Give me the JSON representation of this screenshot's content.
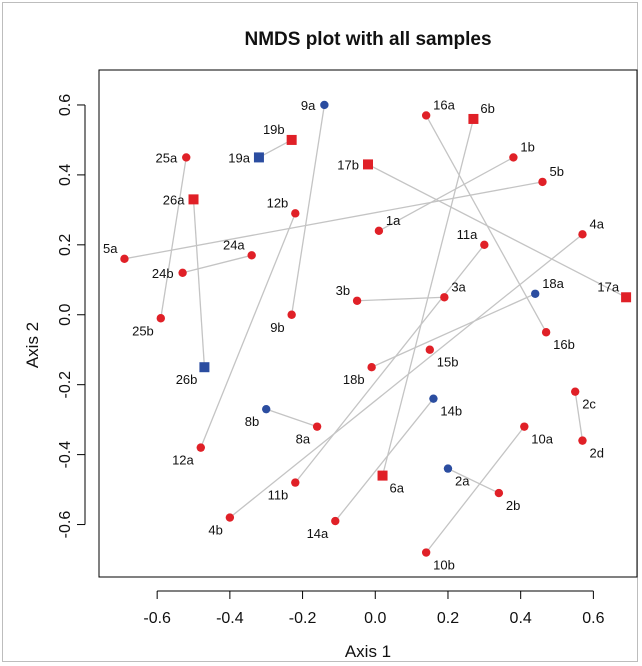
{
  "chart_data": {
    "type": "scatter",
    "title": "NMDS plot with all samples",
    "xlabel": "Axis 1",
    "ylabel": "Axis 2",
    "xlim": [
      -0.76,
      0.72
    ],
    "ylim": [
      -0.75,
      0.7
    ],
    "x_ticks": [
      "-0.6",
      "-0.4",
      "-0.2",
      "0.0",
      "0.2",
      "0.4",
      "0.6"
    ],
    "y_ticks": [
      "-0.6",
      "-0.4",
      "-0.2",
      "0.0",
      "0.2",
      "0.4",
      "0.6"
    ],
    "grid": false,
    "colors": {
      "red": "#e02027",
      "blue": "#2b4da0",
      "line": "#c4c4c4"
    },
    "points": [
      {
        "id": "9a",
        "x": -0.14,
        "y": 0.6,
        "color": "blue",
        "shape": "circle",
        "label_pos": "left"
      },
      {
        "id": "19b",
        "x": -0.23,
        "y": 0.5,
        "color": "red",
        "shape": "square",
        "label_pos": "above-left"
      },
      {
        "id": "19a",
        "x": -0.32,
        "y": 0.45,
        "color": "blue",
        "shape": "square",
        "label_pos": "left"
      },
      {
        "id": "25a",
        "x": -0.52,
        "y": 0.45,
        "color": "red",
        "shape": "circle",
        "label_pos": "left"
      },
      {
        "id": "26a",
        "x": -0.5,
        "y": 0.33,
        "color": "red",
        "shape": "square",
        "label_pos": "left"
      },
      {
        "id": "12b",
        "x": -0.22,
        "y": 0.29,
        "color": "red",
        "shape": "circle",
        "label_pos": "above-left"
      },
      {
        "id": "5a",
        "x": -0.69,
        "y": 0.16,
        "color": "red",
        "shape": "circle",
        "label_pos": "above-left"
      },
      {
        "id": "24a",
        "x": -0.34,
        "y": 0.17,
        "color": "red",
        "shape": "circle",
        "label_pos": "above-left"
      },
      {
        "id": "24b",
        "x": -0.53,
        "y": 0.12,
        "color": "red",
        "shape": "circle",
        "label_pos": "left"
      },
      {
        "id": "25b",
        "x": -0.59,
        "y": -0.01,
        "color": "red",
        "shape": "circle",
        "label_pos": "below-left"
      },
      {
        "id": "9b",
        "x": -0.23,
        "y": 0.0,
        "color": "red",
        "shape": "circle",
        "label_pos": "below-left"
      },
      {
        "id": "26b",
        "x": -0.47,
        "y": -0.15,
        "color": "blue",
        "shape": "square",
        "label_pos": "below-left"
      },
      {
        "id": "12a",
        "x": -0.48,
        "y": -0.38,
        "color": "red",
        "shape": "circle",
        "label_pos": "below-left"
      },
      {
        "id": "8b",
        "x": -0.3,
        "y": -0.27,
        "color": "blue",
        "shape": "circle",
        "label_pos": "below-left"
      },
      {
        "id": "8a",
        "x": -0.16,
        "y": -0.32,
        "color": "red",
        "shape": "circle",
        "label_pos": "below-left"
      },
      {
        "id": "11b",
        "x": -0.22,
        "y": -0.48,
        "color": "red",
        "shape": "circle",
        "label_pos": "below-left"
      },
      {
        "id": "4b",
        "x": -0.4,
        "y": -0.58,
        "color": "red",
        "shape": "circle",
        "label_pos": "below-left"
      },
      {
        "id": "14a",
        "x": -0.11,
        "y": -0.59,
        "color": "red",
        "shape": "circle",
        "label_pos": "below-left"
      },
      {
        "id": "16a",
        "x": 0.14,
        "y": 0.57,
        "color": "red",
        "shape": "circle",
        "label_pos": "above-right"
      },
      {
        "id": "6b",
        "x": 0.27,
        "y": 0.56,
        "color": "red",
        "shape": "square",
        "label_pos": "above-right"
      },
      {
        "id": "17b",
        "x": -0.02,
        "y": 0.43,
        "color": "red",
        "shape": "square",
        "label_pos": "left"
      },
      {
        "id": "1b",
        "x": 0.38,
        "y": 0.45,
        "color": "red",
        "shape": "circle",
        "label_pos": "above-right"
      },
      {
        "id": "5b",
        "x": 0.46,
        "y": 0.38,
        "color": "red",
        "shape": "circle",
        "label_pos": "above-right"
      },
      {
        "id": "1a",
        "x": 0.01,
        "y": 0.24,
        "color": "red",
        "shape": "circle",
        "label_pos": "above-right"
      },
      {
        "id": "11a",
        "x": 0.3,
        "y": 0.2,
        "color": "red",
        "shape": "circle",
        "label_pos": "above-left"
      },
      {
        "id": "4a",
        "x": 0.57,
        "y": 0.23,
        "color": "red",
        "shape": "circle",
        "label_pos": "above-right"
      },
      {
        "id": "3b",
        "x": -0.05,
        "y": 0.04,
        "color": "red",
        "shape": "circle",
        "label_pos": "above-left"
      },
      {
        "id": "3a",
        "x": 0.19,
        "y": 0.05,
        "color": "red",
        "shape": "circle",
        "label_pos": "above-right"
      },
      {
        "id": "18a",
        "x": 0.44,
        "y": 0.06,
        "color": "blue",
        "shape": "circle",
        "label_pos": "above-right"
      },
      {
        "id": "17a",
        "x": 0.69,
        "y": 0.05,
        "color": "red",
        "shape": "square",
        "label_pos": "above-left"
      },
      {
        "id": "16b",
        "x": 0.47,
        "y": -0.05,
        "color": "red",
        "shape": "circle",
        "label_pos": "below-right"
      },
      {
        "id": "15b",
        "x": 0.15,
        "y": -0.1,
        "color": "red",
        "shape": "circle",
        "label_pos": "below-right"
      },
      {
        "id": "18b",
        "x": -0.01,
        "y": -0.15,
        "color": "red",
        "shape": "circle",
        "label_pos": "below-left"
      },
      {
        "id": "14b",
        "x": 0.16,
        "y": -0.24,
        "color": "blue",
        "shape": "circle",
        "label_pos": "below-right"
      },
      {
        "id": "2c",
        "x": 0.55,
        "y": -0.22,
        "color": "red",
        "shape": "circle",
        "label_pos": "below-right"
      },
      {
        "id": "10a",
        "x": 0.41,
        "y": -0.32,
        "color": "red",
        "shape": "circle",
        "label_pos": "below-right"
      },
      {
        "id": "2d",
        "x": 0.57,
        "y": -0.36,
        "color": "red",
        "shape": "circle",
        "label_pos": "below-right"
      },
      {
        "id": "6a",
        "x": 0.02,
        "y": -0.46,
        "color": "red",
        "shape": "square",
        "label_pos": "below-right"
      },
      {
        "id": "2a",
        "x": 0.2,
        "y": -0.44,
        "color": "blue",
        "shape": "circle",
        "label_pos": "below-right"
      },
      {
        "id": "2b",
        "x": 0.34,
        "y": -0.51,
        "color": "red",
        "shape": "circle",
        "label_pos": "below-right"
      },
      {
        "id": "10b",
        "x": 0.14,
        "y": -0.68,
        "color": "red",
        "shape": "circle",
        "label_pos": "below-right"
      }
    ],
    "segments": [
      [
        "9a",
        "9b"
      ],
      [
        "19a",
        "19b"
      ],
      [
        "25a",
        "25b"
      ],
      [
        "26a",
        "26b"
      ],
      [
        "5a",
        "5b"
      ],
      [
        "24a",
        "24b"
      ],
      [
        "12a",
        "12b"
      ],
      [
        "8a",
        "8b"
      ],
      [
        "4a",
        "4b"
      ],
      [
        "11a",
        "11b"
      ],
      [
        "14a",
        "14b"
      ],
      [
        "16a",
        "16b"
      ],
      [
        "6a",
        "6b"
      ],
      [
        "17a",
        "17b"
      ],
      [
        "1a",
        "1b"
      ],
      [
        "3a",
        "3b"
      ],
      [
        "18a",
        "18b"
      ],
      [
        "2a",
        "2b"
      ],
      [
        "2c",
        "2d"
      ],
      [
        "10a",
        "10b"
      ]
    ]
  }
}
